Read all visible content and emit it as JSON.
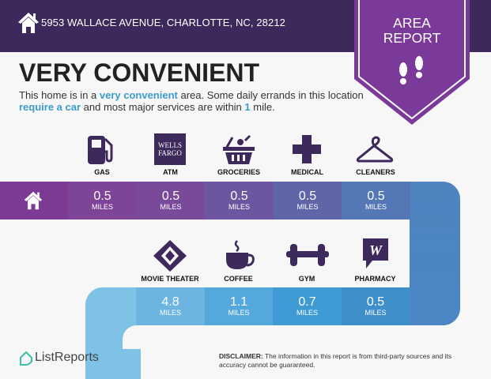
{
  "header": {
    "address": "5953 WALLACE AVENUE, CHARLOTTE, NC, 28212",
    "badge_line1": "AREA",
    "badge_line2": "REPORT"
  },
  "title": "VERY CONVENIENT",
  "description": {
    "p1": "This home is in a ",
    "h1": "very convenient",
    "p2": " area. Some daily errands in this location ",
    "h2": "require a car",
    "p3": " and most major services are within ",
    "h3": "1",
    "p4": " mile."
  },
  "top_row": [
    {
      "label": "GAS",
      "icon": "gas-pump-icon",
      "distance": "0.5",
      "unit": "MILES"
    },
    {
      "label": "ATM",
      "icon": "wells-fargo-icon",
      "icon_text1": "WELLS",
      "icon_text2": "FARGO",
      "distance": "0.5",
      "unit": "MILES"
    },
    {
      "label": "GROCERIES",
      "icon": "grocery-basket-icon",
      "distance": "0.5",
      "unit": "MILES"
    },
    {
      "label": "MEDICAL",
      "icon": "medical-cross-icon",
      "distance": "0.5",
      "unit": "MILES"
    },
    {
      "label": "CLEANERS",
      "icon": "hanger-icon",
      "distance": "0.5",
      "unit": "MILES"
    }
  ],
  "bottom_row": [
    {
      "label": "MOVIE THEATER",
      "icon": "ticket-icon",
      "distance": "4.8",
      "unit": "MILES"
    },
    {
      "label": "COFFEE",
      "icon": "coffee-cup-icon",
      "distance": "1.1",
      "unit": "MILES"
    },
    {
      "label": "GYM",
      "icon": "dumbbell-icon",
      "distance": "0.7",
      "unit": "MILES"
    },
    {
      "label": "PHARMACY",
      "icon": "walgreens-icon",
      "icon_text": "W",
      "distance": "0.5",
      "unit": "MILES"
    }
  ],
  "footer": {
    "brand": "ListReports",
    "disclaimer_label": "DISCLAIMER:",
    "disclaimer": " The information in this report is from third-party sources and its accuracy cannot be guaranteed."
  },
  "colors": {
    "header": "#3d295b",
    "badge": "#7b3a99",
    "accent": "#3c9ccc"
  }
}
